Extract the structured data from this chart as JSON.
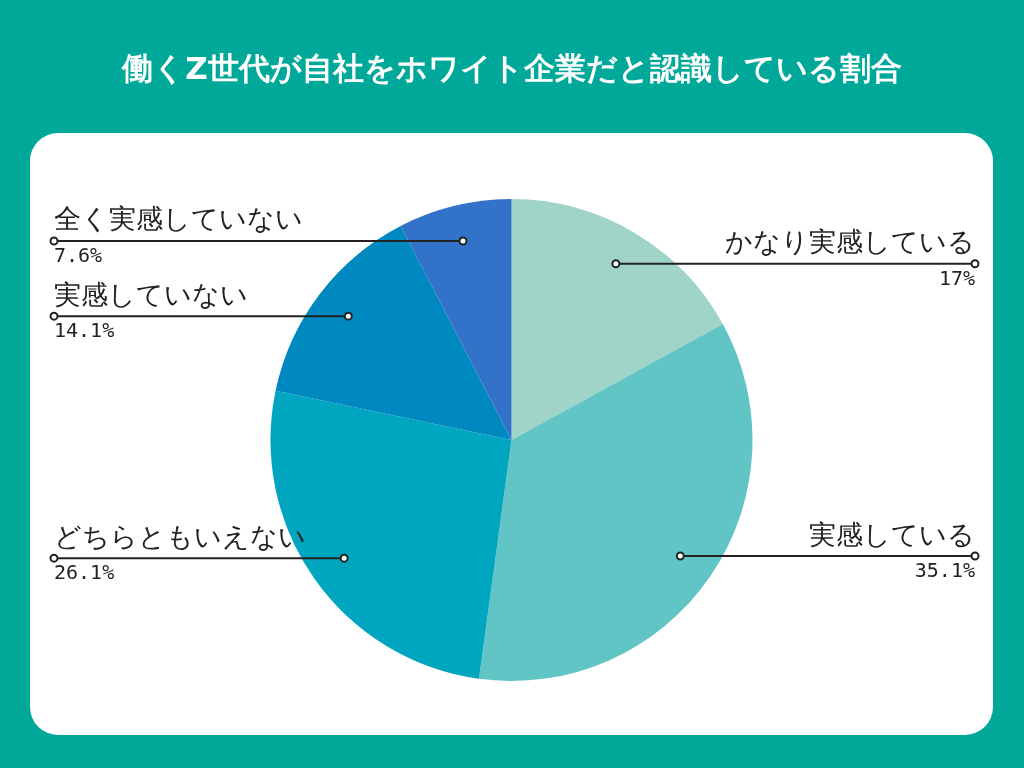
{
  "chart_data": {
    "type": "pie",
    "title": "働くZ世代が自社をホワイト企業だと認識している割合",
    "categories": [
      "かなり実感している",
      "実感している",
      "どちらともいえない",
      "実感していない",
      "全く実感していない"
    ],
    "values": [
      17,
      35.1,
      26.1,
      14.1,
      7.6
    ],
    "colors": [
      "#a0d4c8",
      "#62c5c5",
      "#00a6bf",
      "#0089c0",
      "#3272c8"
    ],
    "value_labels": [
      "17%",
      "35.1%",
      "26.1%",
      "14.1%",
      "7.6%"
    ],
    "legend": false
  }
}
